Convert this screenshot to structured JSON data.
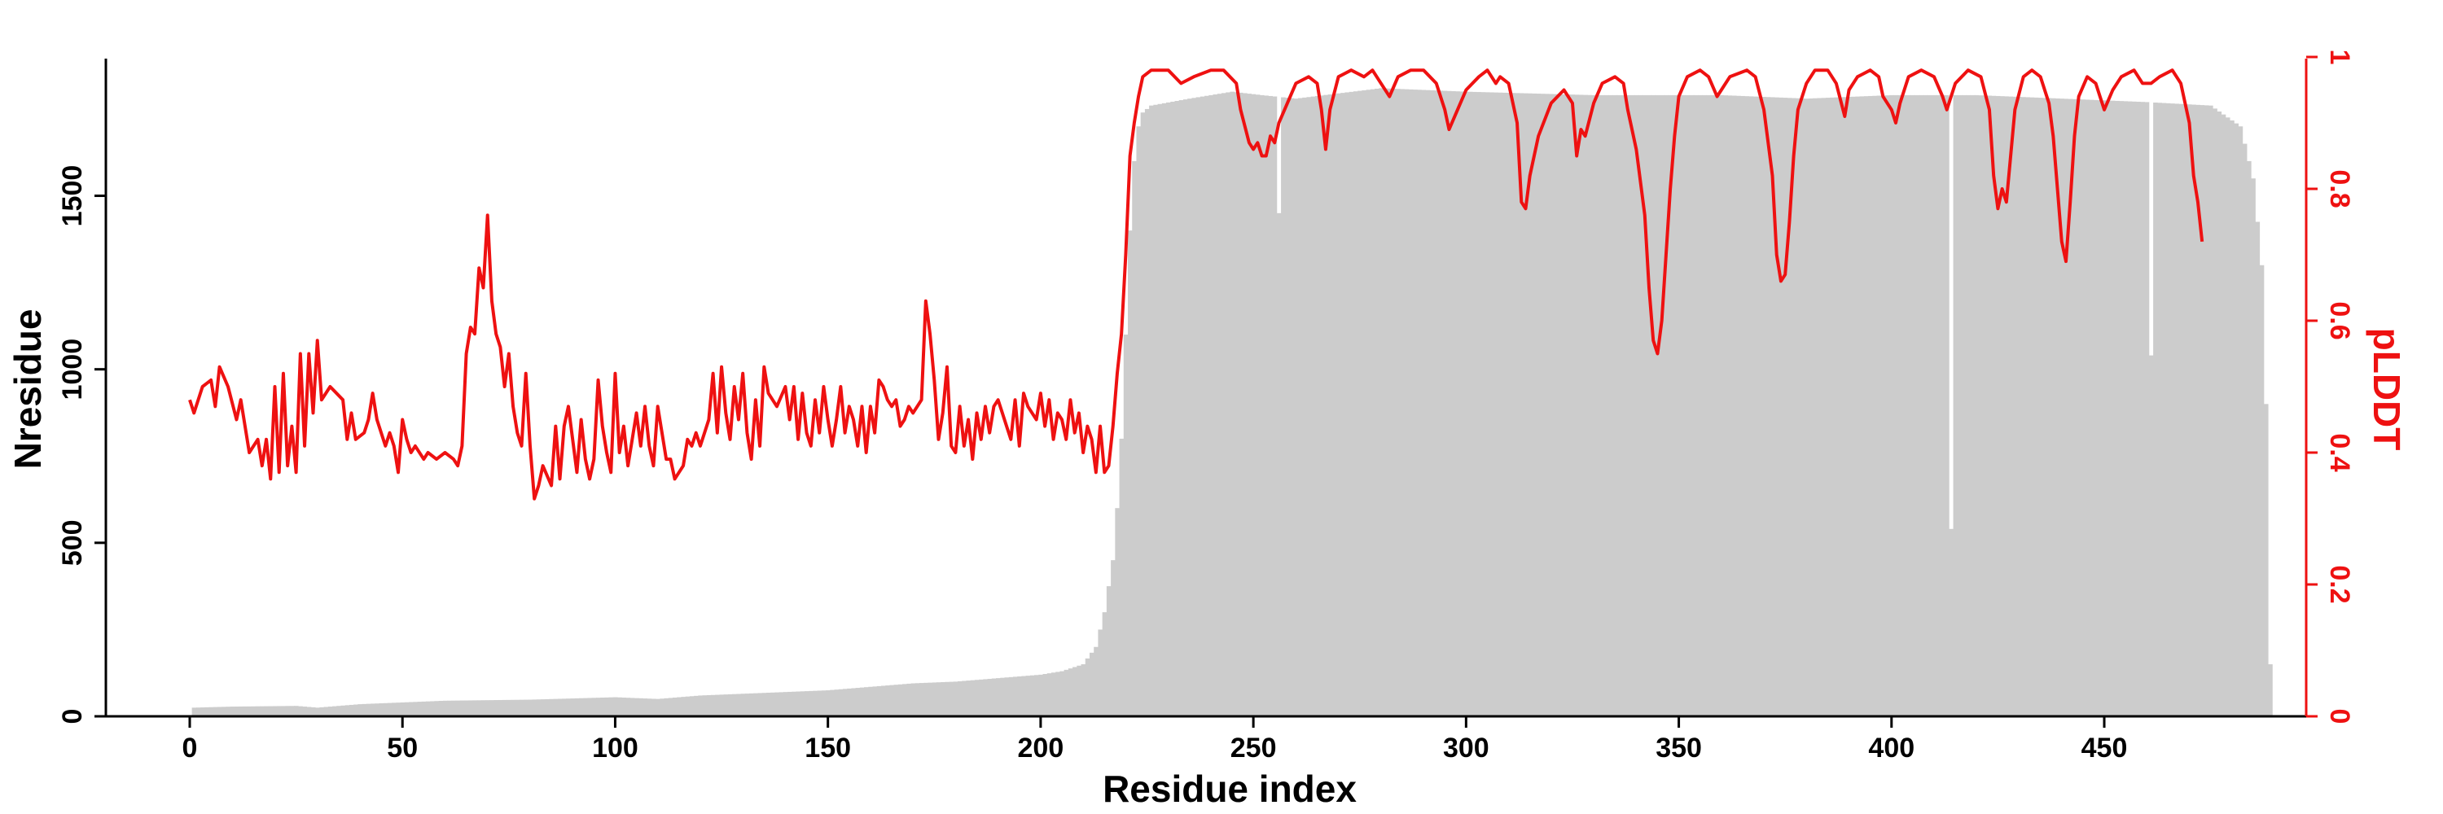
{
  "chart_data": {
    "type": "bar+line",
    "xlabel": "Residue index",
    "ylabel_left": "Nresidue",
    "ylabel_right": "pLDDT",
    "xlim": [
      0,
      490
    ],
    "ylim_left": [
      0,
      1900
    ],
    "ylim_right": [
      0,
      1
    ],
    "x_ticks": [
      0,
      50,
      100,
      150,
      200,
      250,
      300,
      350,
      400,
      450
    ],
    "y_ticks_left": [
      0,
      500,
      1000,
      1500
    ],
    "y_ticks_right": [
      0,
      0.2,
      0.4,
      0.6,
      0.8,
      1
    ],
    "bar_color": "#cccccc",
    "line_color": "#ee1111",
    "nresidue_knots": [
      [
        1,
        25
      ],
      [
        10,
        28
      ],
      [
        25,
        30
      ],
      [
        30,
        25
      ],
      [
        40,
        35
      ],
      [
        50,
        40
      ],
      [
        60,
        45
      ],
      [
        80,
        48
      ],
      [
        100,
        55
      ],
      [
        110,
        50
      ],
      [
        120,
        60
      ],
      [
        140,
        70
      ],
      [
        150,
        75
      ],
      [
        160,
        85
      ],
      [
        170,
        95
      ],
      [
        180,
        100
      ],
      [
        190,
        110
      ],
      [
        200,
        120
      ],
      [
        205,
        130
      ],
      [
        210,
        150
      ],
      [
        213,
        200
      ],
      [
        215,
        300
      ],
      [
        217,
        450
      ],
      [
        218,
        600
      ],
      [
        219,
        800
      ],
      [
        220,
        1100
      ],
      [
        221,
        1400
      ],
      [
        222,
        1600
      ],
      [
        223,
        1700
      ],
      [
        224,
        1740
      ],
      [
        226,
        1760
      ],
      [
        235,
        1780
      ],
      [
        245,
        1800
      ],
      [
        252,
        1790
      ],
      [
        260,
        1780
      ],
      [
        280,
        1810
      ],
      [
        300,
        1800
      ],
      [
        330,
        1790
      ],
      [
        360,
        1790
      ],
      [
        380,
        1780
      ],
      [
        400,
        1790
      ],
      [
        420,
        1790
      ],
      [
        440,
        1780
      ],
      [
        460,
        1770
      ],
      [
        475,
        1760
      ],
      [
        482,
        1700
      ],
      [
        485,
        1550
      ],
      [
        487,
        1300
      ],
      [
        488,
        900
      ],
      [
        489,
        150
      ]
    ],
    "nresidue_dips": [
      [
        256,
        1400
      ],
      [
        256,
        1450
      ],
      [
        414,
        540
      ],
      [
        461,
        1040
      ]
    ],
    "plddt_knots": [
      [
        0,
        0.48
      ],
      [
        1,
        0.46
      ],
      [
        3,
        0.5
      ],
      [
        5,
        0.51
      ],
      [
        6,
        0.47
      ],
      [
        7,
        0.53
      ],
      [
        9,
        0.5
      ],
      [
        11,
        0.45
      ],
      [
        12,
        0.48
      ],
      [
        14,
        0.4
      ],
      [
        16,
        0.42
      ],
      [
        17,
        0.38
      ],
      [
        18,
        0.42
      ],
      [
        19,
        0.36
      ],
      [
        20,
        0.5
      ],
      [
        21,
        0.37
      ],
      [
        22,
        0.52
      ],
      [
        23,
        0.38
      ],
      [
        24,
        0.44
      ],
      [
        25,
        0.37
      ],
      [
        26,
        0.55
      ],
      [
        27,
        0.41
      ],
      [
        28,
        0.55
      ],
      [
        29,
        0.46
      ],
      [
        30,
        0.57
      ],
      [
        31,
        0.48
      ],
      [
        33,
        0.5
      ],
      [
        36,
        0.48
      ],
      [
        37,
        0.42
      ],
      [
        38,
        0.46
      ],
      [
        39,
        0.42
      ],
      [
        41,
        0.43
      ],
      [
        42,
        0.45
      ],
      [
        43,
        0.49
      ],
      [
        44,
        0.45
      ],
      [
        46,
        0.41
      ],
      [
        47,
        0.43
      ],
      [
        48,
        0.41
      ],
      [
        49,
        0.37
      ],
      [
        50,
        0.45
      ],
      [
        51,
        0.42
      ],
      [
        52,
        0.4
      ],
      [
        53,
        0.41
      ],
      [
        55,
        0.39
      ],
      [
        56,
        0.4
      ],
      [
        58,
        0.39
      ],
      [
        60,
        0.4
      ],
      [
        62,
        0.39
      ],
      [
        63,
        0.38
      ],
      [
        64,
        0.41
      ],
      [
        65,
        0.55
      ],
      [
        66,
        0.59
      ],
      [
        67,
        0.58
      ],
      [
        68,
        0.68
      ],
      [
        69,
        0.65
      ],
      [
        70,
        0.76
      ],
      [
        71,
        0.63
      ],
      [
        72,
        0.58
      ],
      [
        73,
        0.56
      ],
      [
        74,
        0.5
      ],
      [
        75,
        0.55
      ],
      [
        76,
        0.47
      ],
      [
        77,
        0.43
      ],
      [
        78,
        0.41
      ],
      [
        79,
        0.52
      ],
      [
        80,
        0.41
      ],
      [
        81,
        0.33
      ],
      [
        82,
        0.35
      ],
      [
        83,
        0.38
      ],
      [
        85,
        0.35
      ],
      [
        86,
        0.44
      ],
      [
        87,
        0.36
      ],
      [
        88,
        0.44
      ],
      [
        89,
        0.47
      ],
      [
        90,
        0.42
      ],
      [
        91,
        0.37
      ],
      [
        92,
        0.45
      ],
      [
        93,
        0.39
      ],
      [
        94,
        0.36
      ],
      [
        95,
        0.39
      ],
      [
        96,
        0.51
      ],
      [
        97,
        0.44
      ],
      [
        98,
        0.4
      ],
      [
        99,
        0.37
      ],
      [
        100,
        0.52
      ],
      [
        101,
        0.4
      ],
      [
        102,
        0.44
      ],
      [
        103,
        0.38
      ],
      [
        104,
        0.42
      ],
      [
        105,
        0.46
      ],
      [
        106,
        0.41
      ],
      [
        107,
        0.47
      ],
      [
        108,
        0.41
      ],
      [
        109,
        0.38
      ],
      [
        110,
        0.47
      ],
      [
        111,
        0.43
      ],
      [
        112,
        0.39
      ],
      [
        113,
        0.39
      ],
      [
        114,
        0.36
      ],
      [
        116,
        0.38
      ],
      [
        117,
        0.42
      ],
      [
        118,
        0.41
      ],
      [
        119,
        0.43
      ],
      [
        120,
        0.41
      ],
      [
        121,
        0.43
      ],
      [
        122,
        0.45
      ],
      [
        123,
        0.52
      ],
      [
        124,
        0.43
      ],
      [
        125,
        0.53
      ],
      [
        126,
        0.46
      ],
      [
        127,
        0.42
      ],
      [
        128,
        0.5
      ],
      [
        129,
        0.45
      ],
      [
        130,
        0.52
      ],
      [
        131,
        0.43
      ],
      [
        132,
        0.39
      ],
      [
        133,
        0.48
      ],
      [
        134,
        0.41
      ],
      [
        135,
        0.53
      ],
      [
        136,
        0.49
      ],
      [
        138,
        0.47
      ],
      [
        140,
        0.5
      ],
      [
        141,
        0.45
      ],
      [
        142,
        0.5
      ],
      [
        143,
        0.42
      ],
      [
        144,
        0.49
      ],
      [
        145,
        0.43
      ],
      [
        146,
        0.41
      ],
      [
        147,
        0.48
      ],
      [
        148,
        0.43
      ],
      [
        149,
        0.5
      ],
      [
        150,
        0.45
      ],
      [
        151,
        0.41
      ],
      [
        152,
        0.45
      ],
      [
        153,
        0.5
      ],
      [
        154,
        0.43
      ],
      [
        155,
        0.47
      ],
      [
        156,
        0.45
      ],
      [
        157,
        0.41
      ],
      [
        158,
        0.47
      ],
      [
        159,
        0.4
      ],
      [
        160,
        0.47
      ],
      [
        161,
        0.43
      ],
      [
        162,
        0.51
      ],
      [
        163,
        0.5
      ],
      [
        164,
        0.48
      ],
      [
        165,
        0.47
      ],
      [
        166,
        0.48
      ],
      [
        167,
        0.44
      ],
      [
        168,
        0.45
      ],
      [
        169,
        0.47
      ],
      [
        170,
        0.46
      ],
      [
        171,
        0.47
      ],
      [
        172,
        0.48
      ],
      [
        173,
        0.63
      ],
      [
        174,
        0.58
      ],
      [
        175,
        0.51
      ],
      [
        176,
        0.42
      ],
      [
        177,
        0.46
      ],
      [
        178,
        0.53
      ],
      [
        179,
        0.41
      ],
      [
        180,
        0.4
      ],
      [
        181,
        0.47
      ],
      [
        182,
        0.41
      ],
      [
        183,
        0.45
      ],
      [
        184,
        0.39
      ],
      [
        185,
        0.46
      ],
      [
        186,
        0.42
      ],
      [
        187,
        0.47
      ],
      [
        188,
        0.43
      ],
      [
        189,
        0.47
      ],
      [
        190,
        0.48
      ],
      [
        191,
        0.46
      ],
      [
        192,
        0.44
      ],
      [
        193,
        0.42
      ],
      [
        194,
        0.48
      ],
      [
        195,
        0.41
      ],
      [
        196,
        0.49
      ],
      [
        197,
        0.47
      ],
      [
        198,
        0.46
      ],
      [
        199,
        0.45
      ],
      [
        200,
        0.49
      ],
      [
        201,
        0.44
      ],
      [
        202,
        0.48
      ],
      [
        203,
        0.42
      ],
      [
        204,
        0.46
      ],
      [
        205,
        0.45
      ],
      [
        206,
        0.42
      ],
      [
        207,
        0.48
      ],
      [
        208,
        0.43
      ],
      [
        209,
        0.46
      ],
      [
        210,
        0.4
      ],
      [
        211,
        0.44
      ],
      [
        212,
        0.42
      ],
      [
        213,
        0.37
      ],
      [
        214,
        0.44
      ],
      [
        215,
        0.37
      ],
      [
        216,
        0.38
      ],
      [
        217,
        0.44
      ],
      [
        218,
        0.52
      ],
      [
        219,
        0.58
      ],
      [
        220,
        0.7
      ],
      [
        221,
        0.85
      ],
      [
        222,
        0.9
      ],
      [
        223,
        0.94
      ],
      [
        224,
        0.97
      ],
      [
        226,
        0.98
      ],
      [
        230,
        0.98
      ],
      [
        233,
        0.96
      ],
      [
        236,
        0.97
      ],
      [
        240,
        0.98
      ],
      [
        243,
        0.98
      ],
      [
        246,
        0.96
      ],
      [
        247,
        0.92
      ],
      [
        249,
        0.87
      ],
      [
        250,
        0.86
      ],
      [
        251,
        0.87
      ],
      [
        252,
        0.85
      ],
      [
        253,
        0.85
      ],
      [
        254,
        0.88
      ],
      [
        255,
        0.87
      ],
      [
        256,
        0.9
      ],
      [
        258,
        0.93
      ],
      [
        260,
        0.96
      ],
      [
        263,
        0.97
      ],
      [
        265,
        0.96
      ],
      [
        266,
        0.92
      ],
      [
        267,
        0.86
      ],
      [
        268,
        0.92
      ],
      [
        270,
        0.97
      ],
      [
        273,
        0.98
      ],
      [
        276,
        0.97
      ],
      [
        278,
        0.98
      ],
      [
        280,
        0.96
      ],
      [
        282,
        0.94
      ],
      [
        284,
        0.97
      ],
      [
        287,
        0.98
      ],
      [
        290,
        0.98
      ],
      [
        293,
        0.96
      ],
      [
        295,
        0.92
      ],
      [
        296,
        0.89
      ],
      [
        298,
        0.92
      ],
      [
        300,
        0.95
      ],
      [
        303,
        0.97
      ],
      [
        305,
        0.98
      ],
      [
        307,
        0.96
      ],
      [
        308,
        0.97
      ],
      [
        310,
        0.96
      ],
      [
        312,
        0.9
      ],
      [
        313,
        0.78
      ],
      [
        314,
        0.77
      ],
      [
        315,
        0.82
      ],
      [
        317,
        0.88
      ],
      [
        320,
        0.93
      ],
      [
        323,
        0.95
      ],
      [
        325,
        0.93
      ],
      [
        326,
        0.85
      ],
      [
        327,
        0.89
      ],
      [
        328,
        0.88
      ],
      [
        330,
        0.93
      ],
      [
        332,
        0.96
      ],
      [
        335,
        0.97
      ],
      [
        337,
        0.96
      ],
      [
        338,
        0.92
      ],
      [
        340,
        0.86
      ],
      [
        342,
        0.76
      ],
      [
        343,
        0.65
      ],
      [
        344,
        0.57
      ],
      [
        345,
        0.55
      ],
      [
        346,
        0.6
      ],
      [
        347,
        0.7
      ],
      [
        348,
        0.8
      ],
      [
        349,
        0.88
      ],
      [
        350,
        0.94
      ],
      [
        352,
        0.97
      ],
      [
        355,
        0.98
      ],
      [
        357,
        0.97
      ],
      [
        359,
        0.94
      ],
      [
        360,
        0.95
      ],
      [
        362,
        0.97
      ],
      [
        366,
        0.98
      ],
      [
        368,
        0.97
      ],
      [
        370,
        0.92
      ],
      [
        372,
        0.82
      ],
      [
        373,
        0.7
      ],
      [
        374,
        0.66
      ],
      [
        375,
        0.67
      ],
      [
        376,
        0.75
      ],
      [
        377,
        0.85
      ],
      [
        378,
        0.92
      ],
      [
        380,
        0.96
      ],
      [
        382,
        0.98
      ],
      [
        385,
        0.98
      ],
      [
        387,
        0.96
      ],
      [
        389,
        0.91
      ],
      [
        390,
        0.95
      ],
      [
        392,
        0.97
      ],
      [
        395,
        0.98
      ],
      [
        397,
        0.97
      ],
      [
        398,
        0.94
      ],
      [
        400,
        0.92
      ],
      [
        401,
        0.9
      ],
      [
        402,
        0.93
      ],
      [
        404,
        0.97
      ],
      [
        407,
        0.98
      ],
      [
        410,
        0.97
      ],
      [
        412,
        0.94
      ],
      [
        413,
        0.92
      ],
      [
        415,
        0.96
      ],
      [
        418,
        0.98
      ],
      [
        421,
        0.97
      ],
      [
        423,
        0.92
      ],
      [
        424,
        0.82
      ],
      [
        425,
        0.77
      ],
      [
        426,
        0.8
      ],
      [
        427,
        0.78
      ],
      [
        428,
        0.85
      ],
      [
        429,
        0.92
      ],
      [
        431,
        0.97
      ],
      [
        433,
        0.98
      ],
      [
        435,
        0.97
      ],
      [
        437,
        0.93
      ],
      [
        438,
        0.88
      ],
      [
        439,
        0.8
      ],
      [
        440,
        0.72
      ],
      [
        441,
        0.69
      ],
      [
        442,
        0.78
      ],
      [
        443,
        0.88
      ],
      [
        444,
        0.94
      ],
      [
        446,
        0.97
      ],
      [
        448,
        0.96
      ],
      [
        449,
        0.94
      ],
      [
        450,
        0.92
      ],
      [
        452,
        0.95
      ],
      [
        454,
        0.97
      ],
      [
        457,
        0.98
      ],
      [
        459,
        0.96
      ],
      [
        461,
        0.96
      ],
      [
        463,
        0.97
      ],
      [
        466,
        0.98
      ],
      [
        468,
        0.96
      ],
      [
        470,
        0.9
      ],
      [
        471,
        0.82
      ],
      [
        472,
        0.78
      ],
      [
        473,
        0.72
      ]
    ]
  }
}
